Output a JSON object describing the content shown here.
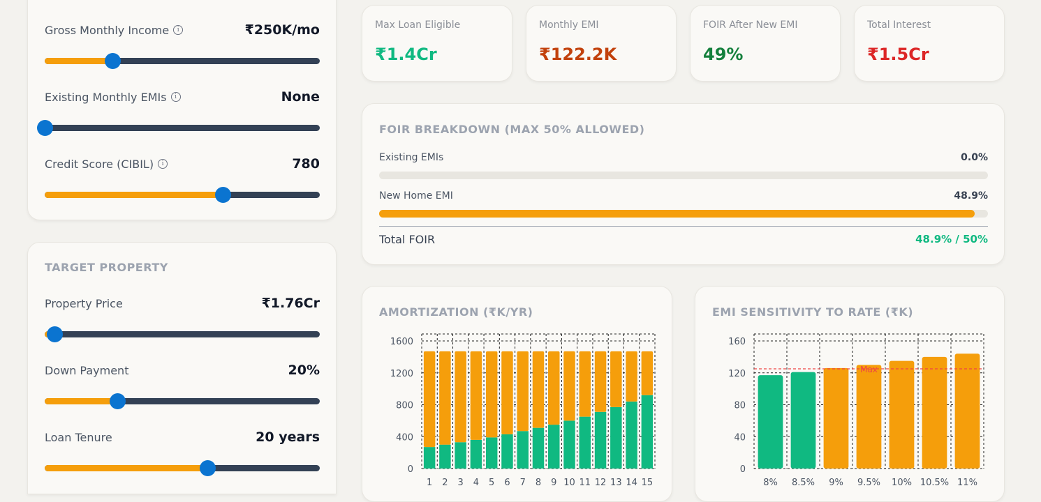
{
  "income_card": {
    "sliders": [
      {
        "label": "Gross Monthly Income",
        "value": "₹250K/mo",
        "fraction": 0.245
      },
      {
        "label": "Existing Monthly EMIs",
        "value": "None",
        "fraction": 0.0
      },
      {
        "label": "Credit Score (CIBIL)",
        "value": "780",
        "fraction": 0.647
      }
    ]
  },
  "property_card": {
    "title": "TARGET PROPERTY",
    "sliders": [
      {
        "label": "Property Price",
        "value": "₹1.76Cr",
        "fraction": 0.035
      },
      {
        "label": "Down Payment",
        "value": "20%",
        "fraction": 0.264
      },
      {
        "label": "Loan Tenure",
        "value": "20 years",
        "fraction": 0.592
      }
    ]
  },
  "kpis": [
    {
      "label": "Max Loan Eligible",
      "value": "₹1.4Cr",
      "color": "#10b981"
    },
    {
      "label": "Monthly EMI",
      "value": "₹122.2K",
      "color": "#c2410c"
    },
    {
      "label": "FOIR After New EMI",
      "value": "49%",
      "color": "#15803d"
    },
    {
      "label": "Total Interest",
      "value": "₹1.5Cr",
      "color": "#dc2626"
    }
  ],
  "foir": {
    "title": "FOIR BREAKDOWN (MAX 50% ALLOWED)",
    "rows": [
      {
        "label": "Existing EMIs",
        "value": "0.0%",
        "fraction": 0.0
      },
      {
        "label": "New Home EMI",
        "value": "48.9%",
        "fraction": 0.978
      }
    ],
    "total_label": "Total FOIR",
    "total_value": "48.9% / 50%",
    "total_color": "#10b981"
  },
  "chart_data": [
    {
      "type": "bar",
      "title": "AMORTIZATION (₹K/YR)",
      "stacked": true,
      "categories": [
        "1",
        "2",
        "3",
        "4",
        "5",
        "6",
        "7",
        "8",
        "9",
        "10",
        "11",
        "12",
        "13",
        "14",
        "15"
      ],
      "series": [
        {
          "values": [
            270,
            300,
            330,
            360,
            390,
            430,
            470,
            510,
            550,
            600,
            650,
            710,
            770,
            840,
            920
          ],
          "color": "#10b981"
        },
        {
          "values": [
            1200,
            1170,
            1140,
            1110,
            1080,
            1040,
            1000,
            960,
            920,
            870,
            820,
            760,
            700,
            630,
            550
          ],
          "color": "#f59e0b"
        }
      ],
      "yticks": [
        "0",
        "400",
        "800",
        "1200",
        "1600"
      ],
      "ylim": [
        0,
        1600
      ],
      "grid": true
    },
    {
      "type": "bar",
      "title": "EMI SENSITIVITY TO RATE (₹K)",
      "categories": [
        "8%",
        "8.5%",
        "9%",
        "9.5%",
        "10%",
        "10.5%",
        "11%"
      ],
      "values": [
        117,
        121,
        126,
        130,
        135,
        140,
        144
      ],
      "colors": [
        "#10b981",
        "#10b981",
        "#f59e0b",
        "#f59e0b",
        "#f59e0b",
        "#f59e0b",
        "#f59e0b"
      ],
      "yticks": [
        "0",
        "40",
        "80",
        "120",
        "160"
      ],
      "ylim": [
        0,
        160
      ],
      "reference_line": {
        "label": "Max",
        "value": 125,
        "color": "#ef4444"
      },
      "grid": true
    }
  ]
}
